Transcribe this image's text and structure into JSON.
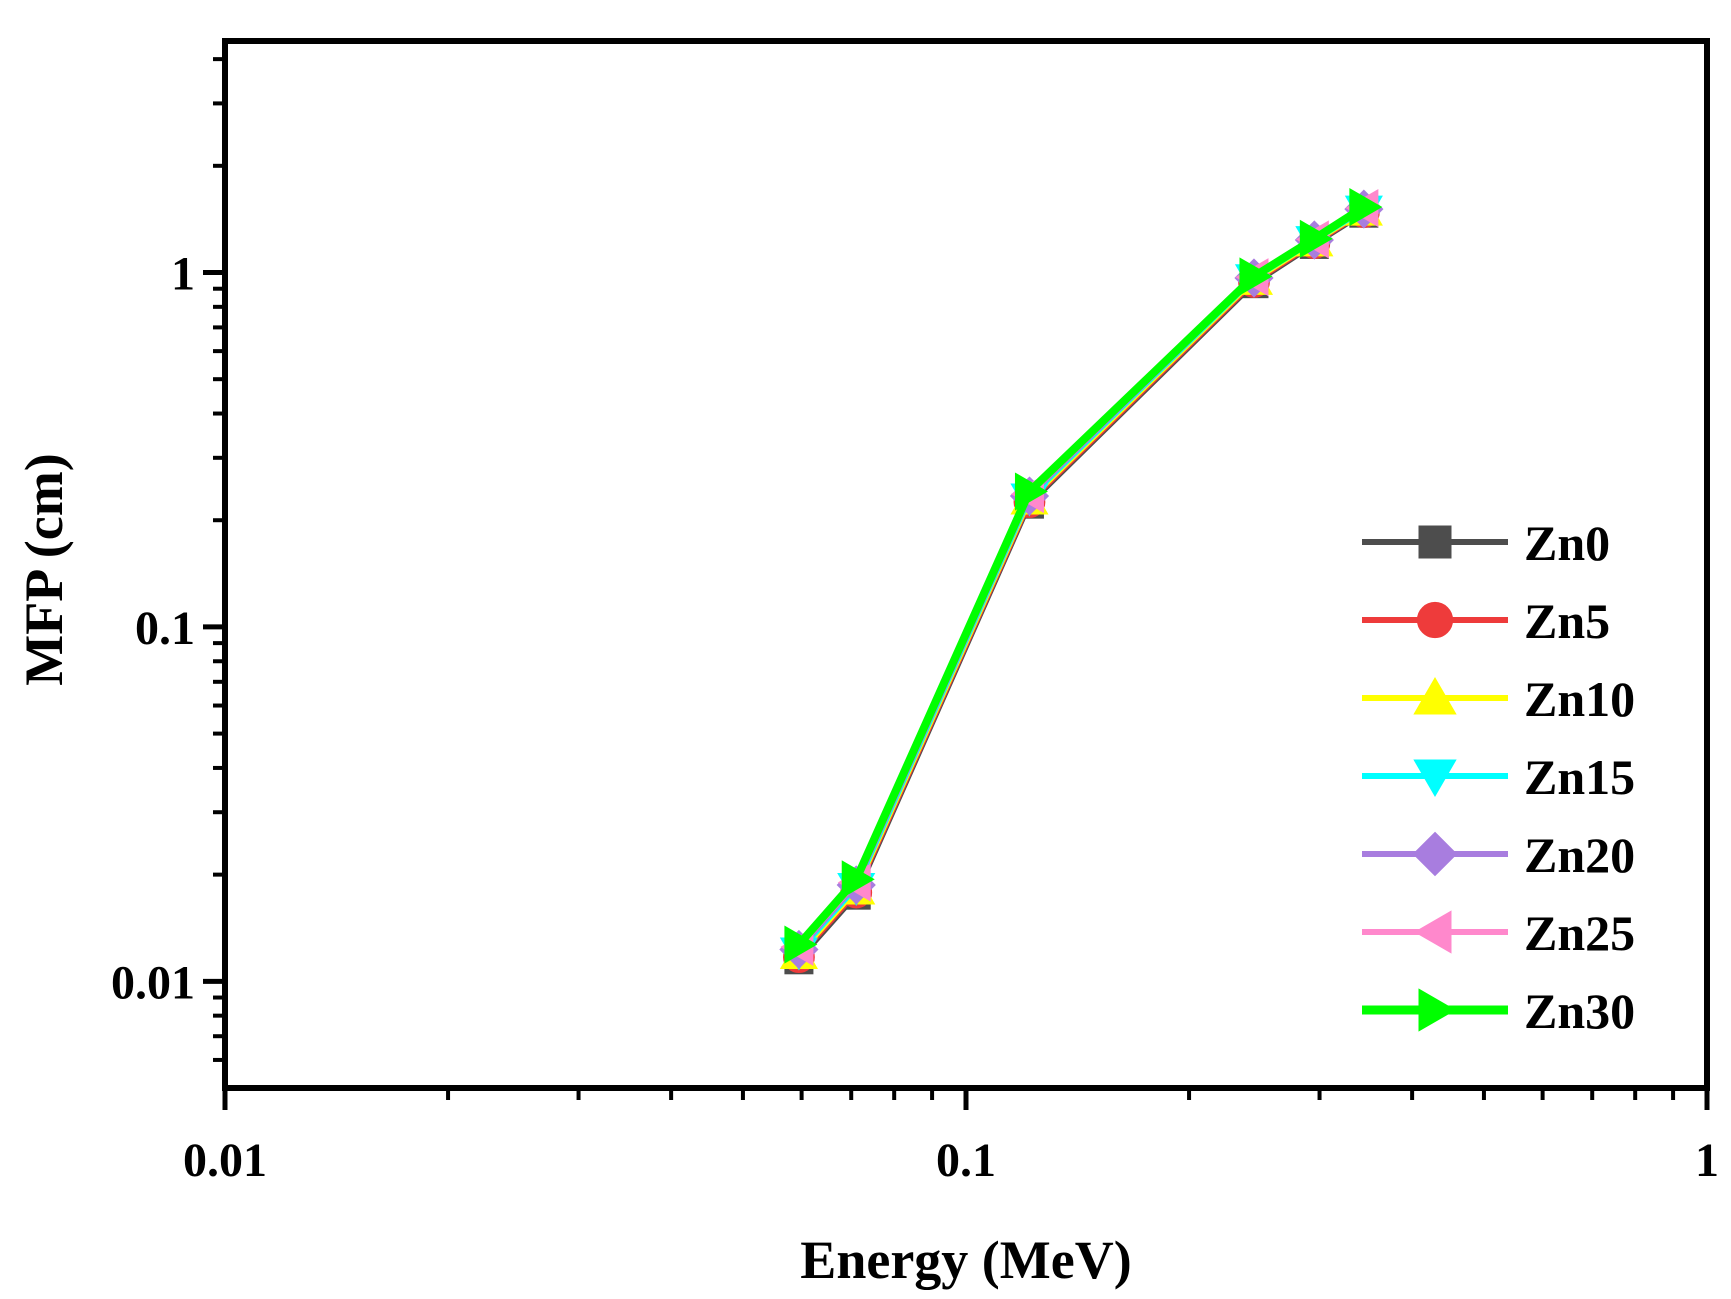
{
  "chart_data": {
    "type": "line",
    "xscale": "log",
    "yscale": "log",
    "xlabel": "Energy (MeV)",
    "ylabel": "MFP (cm)",
    "xlim": [
      0.01,
      1
    ],
    "ylim": [
      0.005,
      4.5
    ],
    "xticks": [
      {
        "value": 0.01,
        "label": "0.01"
      },
      {
        "value": 0.1,
        "label": "0.1"
      },
      {
        "value": 1,
        "label": "1"
      }
    ],
    "yticks": [
      {
        "value": 0.01,
        "label": "0.01"
      },
      {
        "value": 0.1,
        "label": "0.1"
      },
      {
        "value": 1,
        "label": "1"
      }
    ],
    "x": [
      0.0595,
      0.0711,
      0.1218,
      0.2447,
      0.2952,
      0.3443
    ],
    "legend_position": "bottom-right",
    "series": [
      {
        "name": "Zn0",
        "color": "#4d4d4d",
        "marker": "square",
        "values": [
          0.0115,
          0.0175,
          0.222,
          0.93,
          1.2,
          1.47
        ]
      },
      {
        "name": "Zn5",
        "color": "#ee3b3b",
        "marker": "circle",
        "values": [
          0.0117,
          0.0178,
          0.225,
          0.94,
          1.21,
          1.48
        ]
      },
      {
        "name": "Zn10",
        "color": "#ffff00",
        "marker": "triangle-up",
        "values": [
          0.0119,
          0.0181,
          0.228,
          0.95,
          1.22,
          1.49
        ]
      },
      {
        "name": "Zn15",
        "color": "#00ffff",
        "marker": "triangle-down",
        "values": [
          0.0121,
          0.0184,
          0.231,
          0.96,
          1.23,
          1.5
        ]
      },
      {
        "name": "Zn20",
        "color": "#a87ddf",
        "marker": "diamond",
        "values": [
          0.0123,
          0.0187,
          0.234,
          0.965,
          1.235,
          1.51
        ]
      },
      {
        "name": "Zn25",
        "color": "#ff88cc",
        "marker": "triangle-left",
        "values": [
          0.0125,
          0.019,
          0.237,
          0.97,
          1.24,
          1.52
        ]
      },
      {
        "name": "Zn30",
        "color": "#00ff00",
        "marker": "triangle-right",
        "values": [
          0.0127,
          0.0194,
          0.241,
          0.975,
          1.245,
          1.53
        ]
      }
    ]
  }
}
